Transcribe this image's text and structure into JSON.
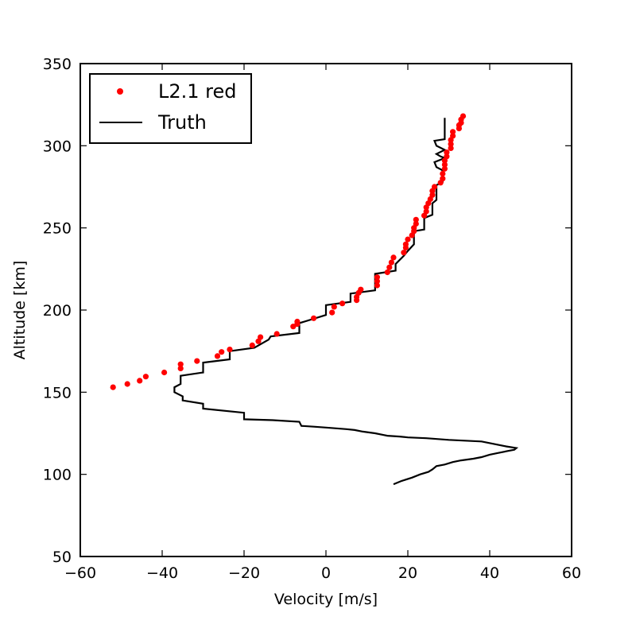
{
  "chart_data": {
    "type": "scatter",
    "title": "",
    "xlabel": "Velocity [m/s]",
    "ylabel": "Altitude [km]",
    "xlim": [
      -60,
      60
    ],
    "ylim": [
      50,
      350
    ],
    "xticks": [
      -60,
      -40,
      -20,
      0,
      20,
      40,
      60
    ],
    "yticks": [
      50,
      100,
      150,
      200,
      250,
      300,
      350
    ],
    "xtick_labels": [
      "−60",
      "−40",
      "−20",
      "0",
      "20",
      "40",
      "60"
    ],
    "ytick_labels": [
      "50",
      "100",
      "150",
      "200",
      "250",
      "300",
      "350"
    ],
    "grid": false,
    "legend": "top-left",
    "series": [
      {
        "name": "L2.1 red",
        "kind": "points",
        "color": "#ff0000",
        "x": [
          -52,
          -48.5,
          -45.5,
          -44,
          -39.5,
          -35.5,
          -35.5,
          -31.5,
          -26.5,
          -25.5,
          -23.5,
          -18,
          -16.5,
          -16,
          -12,
          -8,
          -7,
          -7,
          -3,
          1.5,
          2,
          4,
          7.5,
          7.5,
          8,
          8.5,
          12.5,
          12.5,
          12.5,
          15,
          15.5,
          16,
          16.5,
          19,
          19.5,
          19.5,
          20,
          21,
          21.5,
          21.5,
          22,
          22,
          24,
          24.5,
          24.5,
          25,
          25.5,
          26,
          26,
          26.5,
          28,
          28.5,
          28.5,
          29,
          29,
          29,
          29.5,
          29.5,
          30.5,
          30.5,
          30.5,
          31,
          31,
          32.5,
          32.5,
          33,
          33,
          33.5
        ],
        "y": [
          153,
          155,
          157,
          159.5,
          162,
          164.5,
          167,
          169,
          172,
          174.5,
          176,
          178.5,
          181,
          183.5,
          185.5,
          190,
          191.5,
          193,
          195,
          198.5,
          202,
          204,
          206,
          208,
          210.5,
          212.5,
          215,
          217.5,
          220,
          223,
          226,
          229,
          232,
          235,
          238,
          240,
          243,
          245.5,
          248,
          250,
          252.5,
          255,
          257.5,
          260,
          262.5,
          265,
          267.5,
          270,
          272.5,
          275,
          277.5,
          280,
          283,
          286,
          288.5,
          291,
          293.5,
          296,
          298.5,
          301,
          303.5,
          306,
          308.5,
          310.5,
          312.5,
          314,
          316,
          318
        ]
      },
      {
        "name": "Truth",
        "kind": "line",
        "color": "#000000",
        "x": [
          16.5,
          18.5,
          21,
          23,
          25,
          26,
          27,
          29,
          31,
          33,
          36,
          38,
          40,
          42,
          44,
          46,
          46.5,
          44,
          38,
          30,
          24.5,
          20,
          18,
          15,
          14,
          12,
          9,
          7,
          5,
          0,
          -3,
          -6,
          -6.5,
          -13,
          -20,
          -20,
          -30,
          -30,
          -35,
          -35,
          -37,
          -37,
          -35.5,
          -35.5,
          -35.5,
          -30,
          -30,
          -23.5,
          -23.5,
          -17.5,
          -14,
          -13.5,
          -6.5,
          -6.5,
          0,
          0,
          6,
          6,
          12,
          12,
          17,
          17,
          19,
          20,
          21.5,
          21.5,
          24,
          24,
          26,
          26,
          27,
          27,
          28.5,
          28.5,
          27,
          26.5,
          29,
          28,
          27,
          29,
          27,
          26.5,
          29,
          29
        ],
        "y": [
          94,
          96,
          98,
          100,
          101.5,
          103,
          105,
          106,
          107.5,
          108.5,
          109.5,
          110.5,
          112,
          113,
          114,
          115,
          116,
          117,
          120,
          121,
          122,
          122.5,
          123,
          123.5,
          124,
          125,
          126,
          127,
          127.5,
          128.5,
          129,
          129.5,
          132,
          133,
          133.5,
          137.5,
          140,
          143,
          145,
          147.5,
          150,
          153,
          155,
          157.5,
          160,
          162,
          168,
          170,
          175,
          177,
          182,
          184,
          186,
          192,
          197,
          203,
          205,
          210,
          212,
          222,
          224,
          228,
          233,
          236,
          240,
          248,
          249,
          256,
          258,
          265,
          267,
          276,
          278,
          285,
          287,
          290,
          292.5,
          293.5,
          295,
          297.5,
          300,
          303,
          304,
          317
        ]
      }
    ]
  }
}
